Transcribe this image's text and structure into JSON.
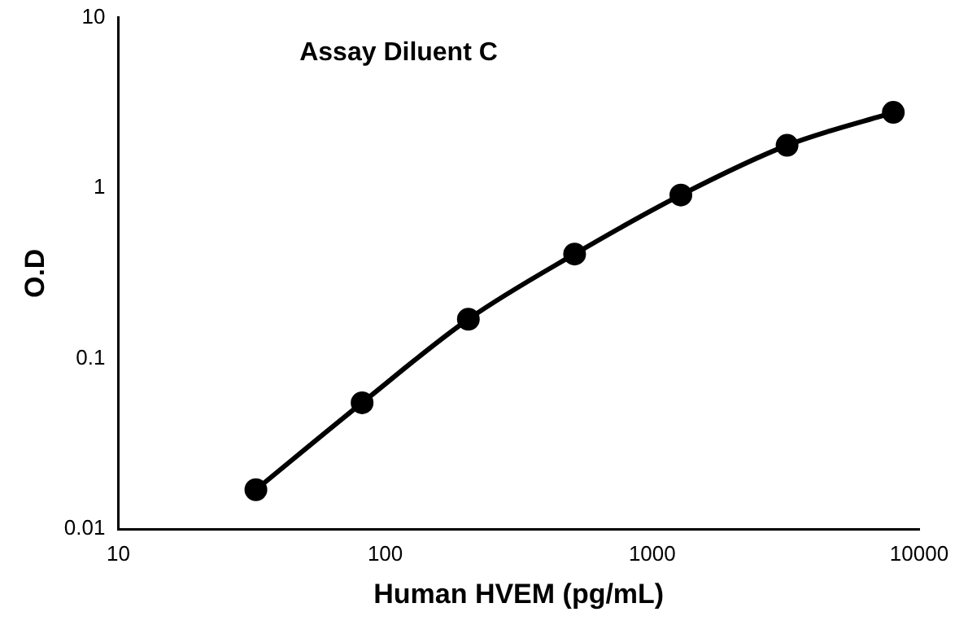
{
  "chart_data": {
    "type": "line",
    "title": "Assay Diluent C",
    "xlabel": "Human HVEM (pg/mL)",
    "ylabel": "O.D",
    "log": "xy",
    "grid": false,
    "legend": false,
    "marker": "circle",
    "line_style": "solid",
    "x": [
      32.77,
      81.92,
      204.8,
      512,
      1280,
      3200,
      8000
    ],
    "series": [
      {
        "color": "#000000",
        "values": [
          0.017,
          0.055,
          0.17,
          0.41,
          0.91,
          1.78,
          2.78
        ]
      }
    ],
    "xlim": [
      10,
      10000
    ],
    "xticks": [
      10,
      100,
      1000,
      10000
    ],
    "ylim": [
      0.01,
      10
    ],
    "yticks": [
      0.01,
      0.1,
      1,
      10
    ]
  }
}
